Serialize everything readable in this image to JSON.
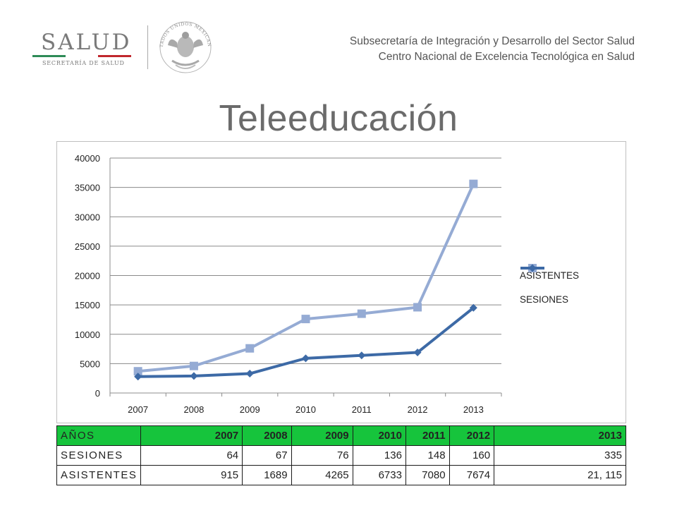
{
  "header": {
    "logo_word": "SALUD",
    "logo_subtitle": "SECRETARÍA DE SALUD",
    "logo_bar_colors": [
      "#2e8b57",
      "#ffffff",
      "#c0272d"
    ],
    "seal_icon": "mexican-coat-of-arms-seal",
    "seal_text": "ESTADOS UNIDOS MEXICANOS",
    "line1": "Subsecretaría de Integración y Desarrollo del Sector Salud",
    "line2": "Centro Nacional de Excelencia Tecnológica en Salud"
  },
  "title": "Teleeducación",
  "chart_data": {
    "type": "line",
    "title": "",
    "xlabel": "",
    "ylabel": "",
    "categories": [
      "2007",
      "2008",
      "2009",
      "2010",
      "2011",
      "2012",
      "2013"
    ],
    "ylim": [
      0,
      40000
    ],
    "yticks": [
      0,
      5000,
      10000,
      15000,
      20000,
      25000,
      30000,
      35000,
      40000
    ],
    "grid": true,
    "legend_position": "right",
    "series": [
      {
        "name": "ASISTENTES",
        "color": "#95abd4",
        "marker": "square",
        "values": [
          3700,
          4600,
          7600,
          12600,
          13500,
          14600,
          35600
        ]
      },
      {
        "name": "SESIONES",
        "color": "#3d6aa6",
        "marker": "diamond",
        "values": [
          2800,
          2900,
          3300,
          5900,
          6400,
          6900,
          14500
        ]
      }
    ]
  },
  "table": {
    "header_color": "#16c43c",
    "header": [
      "AÑOS",
      "2007",
      "2008",
      "2009",
      "2010",
      "2011",
      "2012",
      "2013"
    ],
    "rows": [
      [
        "SESIONES",
        "64",
        "67",
        "76",
        "136",
        "148",
        "160",
        "335"
      ],
      [
        "ASISTENTES",
        "915",
        "1689",
        "4265",
        "6733",
        "7080",
        "7674",
        "21, 115"
      ]
    ]
  }
}
